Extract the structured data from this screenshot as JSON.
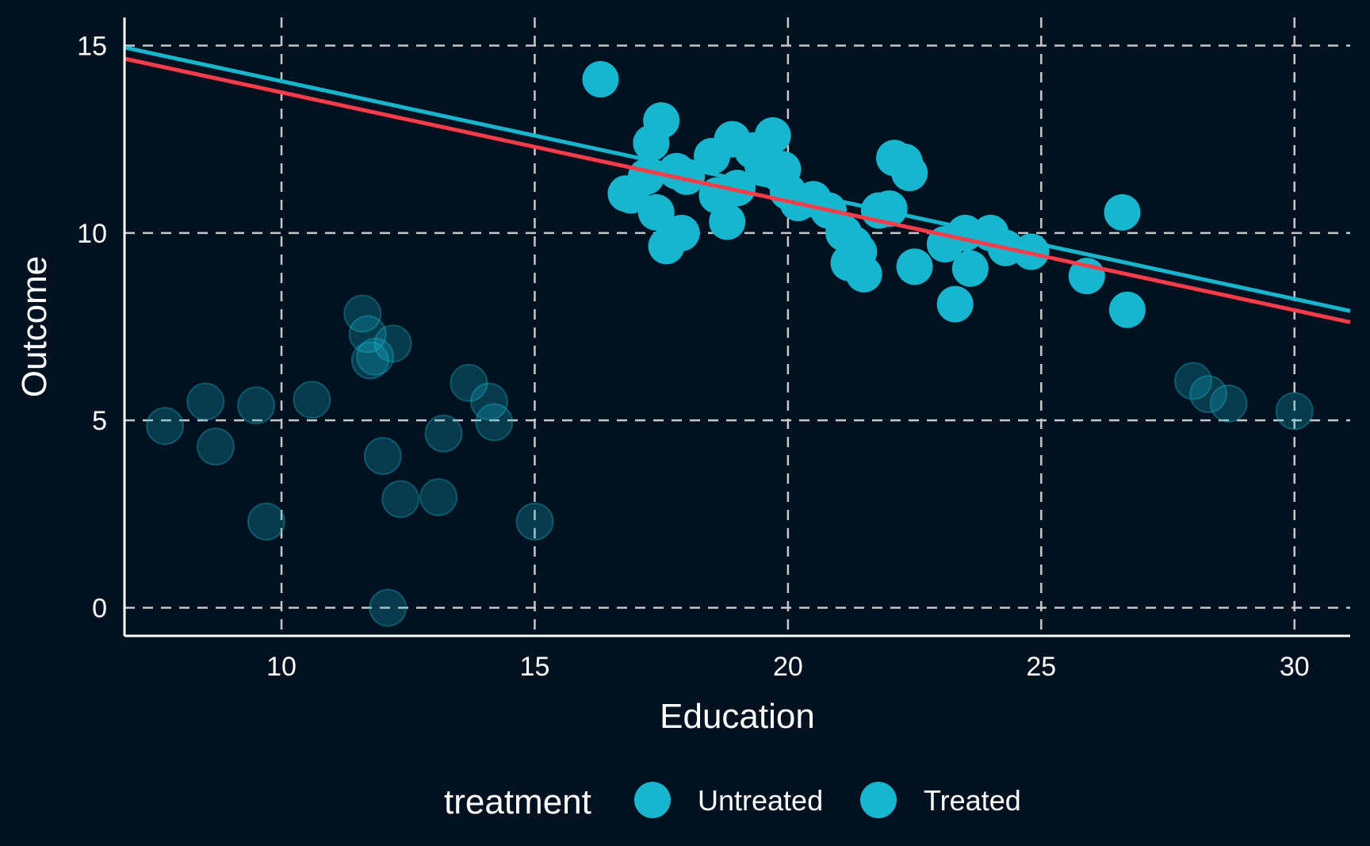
{
  "chart_data": {
    "type": "scatter",
    "xlabel": "Education",
    "ylabel": "Outcome",
    "xlim": [
      6.9,
      31.1
    ],
    "ylim": [
      -0.75,
      15.75
    ],
    "xticks": [
      10,
      15,
      20,
      25,
      30
    ],
    "yticks": [
      0,
      5,
      10,
      15
    ],
    "grid": true,
    "grid_style": "dashed",
    "legend": {
      "title": "treatment",
      "position": "bottom",
      "entries": [
        "Untreated",
        "Treated"
      ]
    },
    "colors": {
      "background": "#02111f",
      "grid": "#c8c8c8",
      "axis": "#ffffff",
      "point": "#17b6cf",
      "line_untreated": "#17b6cf",
      "line_treated": "#ff3b4a"
    },
    "series": [
      {
        "name": "Untreated",
        "opacity": 0.25,
        "x": [
          7.7,
          8.5,
          8.7,
          9.5,
          9.7,
          10.6,
          11.6,
          11.7,
          11.75,
          11.85,
          12.0,
          12.1,
          12.2,
          12.35,
          13.1,
          13.2,
          13.7,
          14.1,
          14.2,
          15.0,
          28.0,
          28.3,
          28.7,
          30.0
        ],
        "y": [
          4.85,
          5.5,
          4.3,
          5.4,
          2.3,
          5.55,
          7.85,
          7.3,
          6.6,
          6.7,
          4.05,
          0.0,
          7.05,
          2.9,
          2.95,
          4.65,
          6.0,
          5.5,
          4.95,
          2.3,
          6.05,
          5.7,
          5.45,
          5.25
        ]
      },
      {
        "name": "Treated",
        "opacity": 1.0,
        "x": [
          16.3,
          16.8,
          16.9,
          17.2,
          17.3,
          17.4,
          17.5,
          17.6,
          17.8,
          17.9,
          18.0,
          18.5,
          18.6,
          18.8,
          18.9,
          19.0,
          19.3,
          19.5,
          19.7,
          19.8,
          19.9,
          20.0,
          20.2,
          20.5,
          20.8,
          21.1,
          21.2,
          21.3,
          21.4,
          21.5,
          21.8,
          22.0,
          22.1,
          22.3,
          22.4,
          22.5,
          23.1,
          23.3,
          23.5,
          23.6,
          24.0,
          24.3,
          24.8,
          25.9,
          26.6,
          26.7
        ],
        "y": [
          14.1,
          11.05,
          11.0,
          11.5,
          12.4,
          10.55,
          13.0,
          9.65,
          11.65,
          10.0,
          11.5,
          12.05,
          11.0,
          10.3,
          12.5,
          11.2,
          12.2,
          11.8,
          12.6,
          11.6,
          11.7,
          11.1,
          10.8,
          10.9,
          10.6,
          10.0,
          9.2,
          9.7,
          9.5,
          8.9,
          10.6,
          10.65,
          12.0,
          11.9,
          11.6,
          9.1,
          9.7,
          8.1,
          10.0,
          9.05,
          10.0,
          9.6,
          9.5,
          8.85,
          10.55,
          7.95
        ]
      }
    ],
    "lines": [
      {
        "name": "Untreated",
        "x": [
          6.9,
          31.1
        ],
        "y": [
          14.95,
          7.92
        ]
      },
      {
        "name": "Treated",
        "x": [
          6.9,
          31.1
        ],
        "y": [
          14.65,
          7.62
        ]
      }
    ]
  }
}
